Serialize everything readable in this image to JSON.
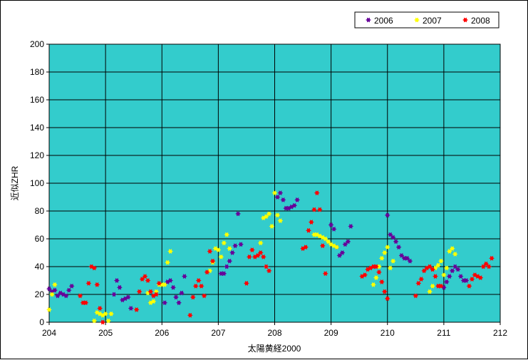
{
  "chart_data": {
    "type": "scatter",
    "xlabel": "太陽黄経2000",
    "ylabel": "近似ZHR",
    "xlim": [
      204,
      212
    ],
    "ylim": [
      0,
      200
    ],
    "x_ticks": [
      "204",
      "205",
      "206",
      "207",
      "208",
      "209",
      "210",
      "211",
      "212"
    ],
    "y_ticks": [
      "0",
      "20",
      "40",
      "60",
      "80",
      "100",
      "120",
      "140",
      "160",
      "180",
      "200"
    ],
    "grid": true,
    "plot_background": "#33CCCC",
    "legend_position": "top-right",
    "series": [
      {
        "name": "2006",
        "color": "#660099",
        "points": [
          [
            204.0,
            24
          ],
          [
            204.05,
            22
          ],
          [
            204.1,
            23
          ],
          [
            204.15,
            19
          ],
          [
            204.2,
            21
          ],
          [
            204.25,
            20
          ],
          [
            204.3,
            19
          ],
          [
            204.35,
            23
          ],
          [
            204.4,
            26
          ],
          [
            205.15,
            20
          ],
          [
            205.2,
            30
          ],
          [
            205.25,
            25
          ],
          [
            205.3,
            16
          ],
          [
            205.35,
            17
          ],
          [
            205.4,
            18
          ],
          [
            205.45,
            10
          ],
          [
            206.05,
            14
          ],
          [
            206.1,
            29
          ],
          [
            206.15,
            30
          ],
          [
            206.2,
            25
          ],
          [
            206.25,
            18
          ],
          [
            206.3,
            14
          ],
          [
            206.35,
            21
          ],
          [
            206.4,
            33
          ],
          [
            207.05,
            35
          ],
          [
            207.1,
            35
          ],
          [
            207.15,
            40
          ],
          [
            207.2,
            44
          ],
          [
            207.25,
            50
          ],
          [
            207.3,
            55
          ],
          [
            207.35,
            78
          ],
          [
            207.4,
            56
          ],
          [
            208.05,
            90
          ],
          [
            208.1,
            93
          ],
          [
            208.15,
            88
          ],
          [
            208.2,
            82
          ],
          [
            208.25,
            82
          ],
          [
            208.3,
            83
          ],
          [
            208.35,
            84
          ],
          [
            208.4,
            88
          ],
          [
            209.0,
            70
          ],
          [
            209.05,
            67
          ],
          [
            209.1,
            54
          ],
          [
            209.15,
            48
          ],
          [
            209.2,
            50
          ],
          [
            209.25,
            56
          ],
          [
            209.3,
            58
          ],
          [
            209.35,
            69
          ],
          [
            210.0,
            77
          ],
          [
            210.05,
            63
          ],
          [
            210.1,
            61
          ],
          [
            210.15,
            58
          ],
          [
            210.2,
            54
          ],
          [
            210.25,
            48
          ],
          [
            210.3,
            46
          ],
          [
            210.35,
            46
          ],
          [
            210.4,
            44
          ],
          [
            211.0,
            25
          ],
          [
            211.05,
            29
          ],
          [
            211.1,
            33
          ],
          [
            211.15,
            37
          ],
          [
            211.2,
            40
          ],
          [
            211.25,
            38
          ],
          [
            211.3,
            33
          ],
          [
            211.35,
            30
          ],
          [
            211.4,
            30
          ]
        ]
      },
      {
        "name": "2007",
        "color": "#FFFF00",
        "points": [
          [
            204.0,
            9
          ],
          [
            204.05,
            20
          ],
          [
            204.1,
            27
          ],
          [
            204.8,
            1
          ],
          [
            204.85,
            7
          ],
          [
            204.9,
            6
          ],
          [
            204.95,
            5
          ],
          [
            205.0,
            6
          ],
          [
            205.05,
            1
          ],
          [
            205.1,
            6
          ],
          [
            205.75,
            21
          ],
          [
            205.8,
            14
          ],
          [
            205.85,
            15
          ],
          [
            205.9,
            22
          ],
          [
            205.95,
            27
          ],
          [
            206.0,
            27
          ],
          [
            206.05,
            27
          ],
          [
            206.1,
            43
          ],
          [
            206.15,
            51
          ],
          [
            206.85,
            37
          ],
          [
            206.9,
            43
          ],
          [
            206.95,
            53
          ],
          [
            207.0,
            52
          ],
          [
            207.05,
            47
          ],
          [
            207.1,
            57
          ],
          [
            207.15,
            63
          ],
          [
            207.2,
            53
          ],
          [
            207.75,
            57
          ],
          [
            207.8,
            75
          ],
          [
            207.85,
            76
          ],
          [
            207.9,
            78
          ],
          [
            207.95,
            69
          ],
          [
            208.0,
            93
          ],
          [
            208.05,
            77
          ],
          [
            208.1,
            73
          ],
          [
            208.7,
            63
          ],
          [
            208.75,
            63
          ],
          [
            208.8,
            62
          ],
          [
            208.85,
            61
          ],
          [
            208.9,
            60
          ],
          [
            208.95,
            58
          ],
          [
            209.0,
            56
          ],
          [
            209.05,
            55
          ],
          [
            209.1,
            54
          ],
          [
            209.75,
            27
          ],
          [
            209.8,
            32
          ],
          [
            209.85,
            40
          ],
          [
            209.9,
            46
          ],
          [
            209.95,
            50
          ],
          [
            210.0,
            54
          ],
          [
            210.05,
            39
          ],
          [
            210.1,
            44
          ],
          [
            210.75,
            22
          ],
          [
            210.8,
            26
          ],
          [
            210.85,
            39
          ],
          [
            210.9,
            41
          ],
          [
            210.95,
            44
          ],
          [
            211.0,
            34
          ],
          [
            211.05,
            39
          ],
          [
            211.1,
            51
          ],
          [
            211.15,
            53
          ],
          [
            211.2,
            49
          ]
        ]
      },
      {
        "name": "2008",
        "color": "#FF0000",
        "points": [
          [
            204.55,
            19
          ],
          [
            204.6,
            14
          ],
          [
            204.65,
            14
          ],
          [
            204.7,
            28
          ],
          [
            204.75,
            40
          ],
          [
            204.8,
            39
          ],
          [
            204.85,
            27
          ],
          [
            204.9,
            10
          ],
          [
            204.95,
            0
          ],
          [
            205.55,
            9
          ],
          [
            205.6,
            22
          ],
          [
            205.65,
            31
          ],
          [
            205.7,
            33
          ],
          [
            205.75,
            30
          ],
          [
            205.8,
            22
          ],
          [
            205.85,
            19
          ],
          [
            205.9,
            20
          ],
          [
            205.95,
            28
          ],
          [
            206.5,
            5
          ],
          [
            206.55,
            18
          ],
          [
            206.6,
            26
          ],
          [
            206.65,
            30
          ],
          [
            206.7,
            26
          ],
          [
            206.75,
            19
          ],
          [
            206.8,
            36
          ],
          [
            206.85,
            51
          ],
          [
            206.9,
            44
          ],
          [
            207.5,
            28
          ],
          [
            207.55,
            47
          ],
          [
            207.6,
            52
          ],
          [
            207.65,
            47
          ],
          [
            207.7,
            48
          ],
          [
            207.75,
            50
          ],
          [
            207.8,
            47
          ],
          [
            207.85,
            40
          ],
          [
            207.9,
            37
          ],
          [
            208.5,
            53
          ],
          [
            208.55,
            54
          ],
          [
            208.6,
            66
          ],
          [
            208.65,
            72
          ],
          [
            208.7,
            81
          ],
          [
            208.75,
            93
          ],
          [
            208.8,
            81
          ],
          [
            208.85,
            55
          ],
          [
            208.9,
            35
          ],
          [
            209.55,
            33
          ],
          [
            209.6,
            34
          ],
          [
            209.65,
            38
          ],
          [
            209.7,
            39
          ],
          [
            209.75,
            40
          ],
          [
            209.8,
            40
          ],
          [
            209.85,
            36
          ],
          [
            209.9,
            29
          ],
          [
            209.95,
            22
          ],
          [
            210.0,
            17
          ],
          [
            210.5,
            19
          ],
          [
            210.55,
            28
          ],
          [
            210.6,
            31
          ],
          [
            210.65,
            37
          ],
          [
            210.7,
            39
          ],
          [
            210.75,
            40
          ],
          [
            210.8,
            38
          ],
          [
            210.85,
            33
          ],
          [
            210.9,
            26
          ],
          [
            210.95,
            26
          ],
          [
            211.45,
            26
          ],
          [
            211.5,
            31
          ],
          [
            211.55,
            34
          ],
          [
            211.6,
            33
          ],
          [
            211.65,
            32
          ],
          [
            211.7,
            40
          ],
          [
            211.75,
            42
          ],
          [
            211.8,
            40
          ],
          [
            211.85,
            46
          ]
        ]
      }
    ]
  }
}
